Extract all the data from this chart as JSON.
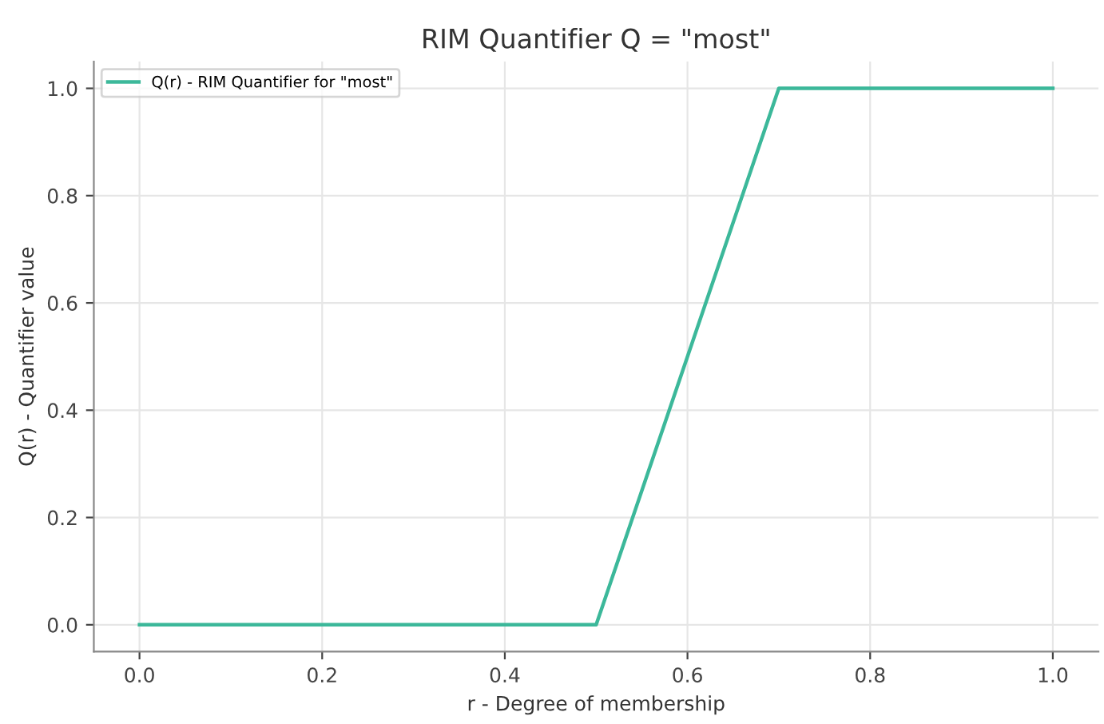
{
  "chart_data": {
    "type": "line",
    "title": "RIM Quantifier Q = \"most\"",
    "xlabel": "r - Degree of membership",
    "ylabel": "Q(r) - Quantifier value",
    "series": [
      {
        "name": "Q(r) - RIM Quantifier for \"most\"",
        "color": "#3cb89a",
        "x": [
          0.0,
          0.5,
          0.7,
          1.0
        ],
        "values": [
          0.0,
          0.0,
          1.0,
          1.0
        ]
      }
    ],
    "xlim": [
      -0.05,
      1.05
    ],
    "ylim": [
      -0.05,
      1.05
    ],
    "xticks": [
      {
        "value": 0,
        "label": "0.0"
      },
      0.2,
      0.4,
      0.6,
      0.8,
      {
        "value": 1,
        "label": "1.0"
      }
    ],
    "yticks": [
      {
        "value": 0,
        "label": "0.0"
      },
      0.2,
      0.4,
      0.6,
      0.8,
      {
        "value": 1,
        "label": "1.0"
      }
    ],
    "grid": true,
    "legend": "top left",
    "marker": "none",
    "line_style": "solid"
  }
}
